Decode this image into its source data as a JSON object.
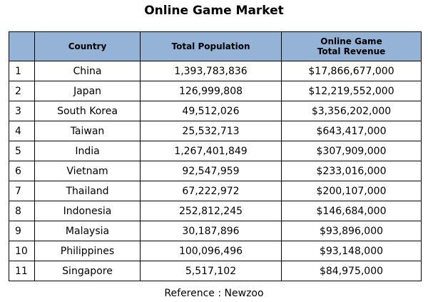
{
  "title": "Online Game Market",
  "table": {
    "headers": {
      "index": "",
      "country": "Country",
      "population": "Total Population",
      "revenue_line1": "Online Game",
      "revenue_line2": "Total Revenue"
    },
    "rows": [
      {
        "index": "1",
        "country": "China",
        "population": "1,393,783,836",
        "revenue": "$17,866,677,000"
      },
      {
        "index": "2",
        "country": "Japan",
        "population": "126,999,808",
        "revenue": "$12,219,552,000"
      },
      {
        "index": "3",
        "country": "South Korea",
        "population": "49,512,026",
        "revenue": "$3,356,202,000"
      },
      {
        "index": "4",
        "country": "Taiwan",
        "population": "25,532,713",
        "revenue": "$643,417,000"
      },
      {
        "index": "5",
        "country": "India",
        "population": "1,267,401,849",
        "revenue": "$307,909,000"
      },
      {
        "index": "6",
        "country": "Vietnam",
        "population": "92,547,959",
        "revenue": "$233,016,000"
      },
      {
        "index": "7",
        "country": "Thailand",
        "population": "67,222,972",
        "revenue": "$200,107,000"
      },
      {
        "index": "8",
        "country": "Indonesia",
        "population": "252,812,245",
        "revenue": "$146,684,000"
      },
      {
        "index": "9",
        "country": "Malaysia",
        "population": "30,187,896",
        "revenue": "$93,896,000"
      },
      {
        "index": "10",
        "country": "Philippines",
        "population": "100,096,496",
        "revenue": "$93,148,000"
      },
      {
        "index": "11",
        "country": "Singapore",
        "population": "5,517,102",
        "revenue": "$84,975,000"
      }
    ]
  },
  "reference": "Reference : Newzoo",
  "colors": {
    "header_background": "#95b3d7",
    "border": "#000000",
    "text": "#000000"
  }
}
